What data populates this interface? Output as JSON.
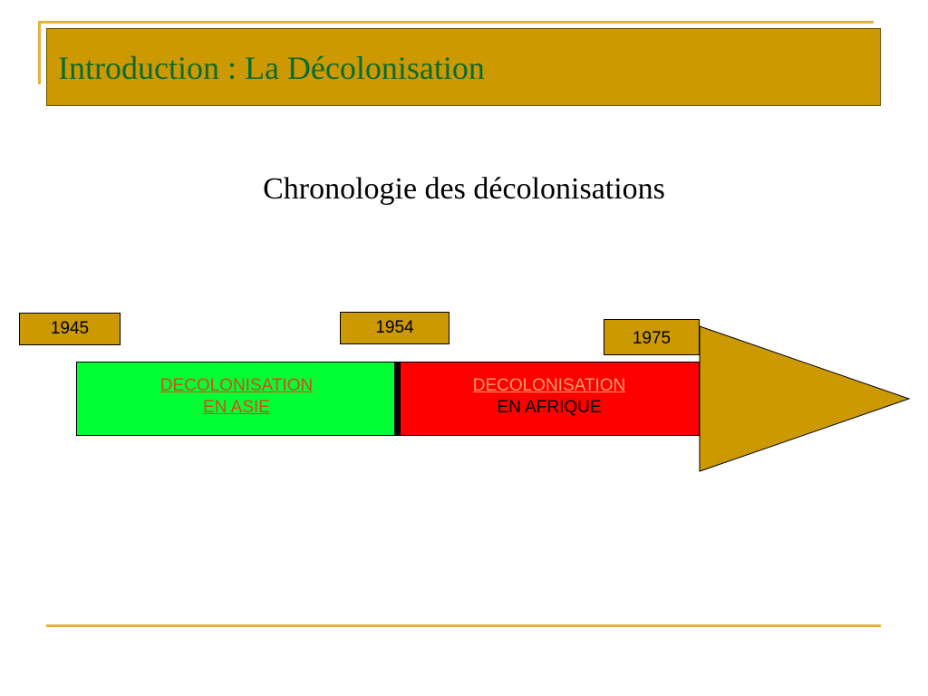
{
  "slide": {
    "title": "Introduction : La Décolonisation",
    "subtitle": "Chronologie des décolonisations"
  },
  "timeline": {
    "years": [
      "1945",
      "1954",
      "1975"
    ],
    "asia": {
      "line1": "DECOLONISATION",
      "line2": "EN ASIE",
      "color": "#00ff33"
    },
    "africa": {
      "line1": "DECOLONISATION",
      "line2": "EN AFRIQUE",
      "color": "#ff0000"
    },
    "arrow_color": "#cc9900"
  },
  "colors": {
    "title_bar": "#cc9900",
    "title_text": "#0b6b2e",
    "accent_rule": "#e6b13d"
  }
}
